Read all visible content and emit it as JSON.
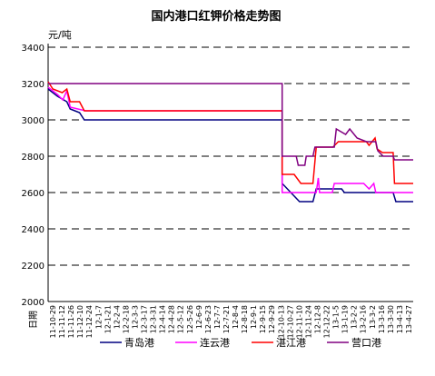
{
  "chart_data": {
    "type": "line",
    "title": "国内港口红钾价格走势图",
    "ylabel": "元/吨",
    "xlabel": "日期",
    "ylim": [
      2000,
      3400
    ],
    "yticks": [
      2000,
      2200,
      2400,
      2600,
      2800,
      3000,
      3200,
      3400
    ],
    "grid": "horizontal-dashed",
    "legend_position": "bottom",
    "x_ticks": [
      "11-10-29",
      "11-11-12",
      "11-11-26",
      "11-12-10",
      "11-12-24",
      "12-1-7",
      "12-1-21",
      "12-2-4",
      "12-2-18",
      "12-3-3",
      "12-3-17",
      "12-3-31",
      "12-4-14",
      "12-4-28",
      "12-5-12",
      "12-5-26",
      "12-6-9",
      "12-6-23",
      "12-7-7",
      "12-7-21",
      "12-8-4",
      "12-8-18",
      "12-9-1",
      "12-9-15",
      "12-9-29",
      "12-10-13",
      "12-10-27",
      "12-11-10",
      "12-11-24",
      "12-12-8",
      "12-12-22",
      "13-1-5",
      "13-1-19",
      "13-2-2",
      "13-2-16",
      "13-3-2",
      "13-3-16",
      "13-3-30",
      "13-4-13",
      "13-4-27"
    ],
    "x_start": "2011-10-29",
    "x_end": "2013-04-27",
    "series": [
      {
        "name": "青岛港",
        "color": "#000080",
        "points": [
          [
            "2011-10-29",
            3170
          ],
          [
            "2011-11-12",
            3130
          ],
          [
            "2011-11-26",
            3100
          ],
          [
            "2011-12-01",
            3060
          ],
          [
            "2011-12-15",
            3040
          ],
          [
            "2011-12-22",
            3000
          ],
          [
            "2012-10-13",
            3000
          ],
          [
            "2012-10-13",
            2650
          ],
          [
            "2012-11-08",
            2550
          ],
          [
            "2012-11-28",
            2550
          ],
          [
            "2012-12-03",
            2620
          ],
          [
            "2013-01-10",
            2620
          ],
          [
            "2013-01-14",
            2600
          ],
          [
            "2013-03-28",
            2600
          ],
          [
            "2013-04-01",
            2550
          ],
          [
            "2013-04-27",
            2550
          ]
        ]
      },
      {
        "name": "连云港",
        "color": "#ff00ff",
        "points": [
          [
            "2011-10-29",
            3180
          ],
          [
            "2011-11-12",
            3140
          ],
          [
            "2011-11-20",
            3110
          ],
          [
            "2011-11-26",
            3160
          ],
          [
            "2011-12-01",
            3070
          ],
          [
            "2011-12-24",
            3050
          ],
          [
            "2012-10-13",
            3050
          ],
          [
            "2012-10-13",
            2600
          ],
          [
            "2012-12-03",
            2600
          ],
          [
            "2012-12-06",
            2680
          ],
          [
            "2012-12-08",
            2600
          ],
          [
            "2012-12-27",
            2600
          ],
          [
            "2012-12-30",
            2650
          ],
          [
            "2013-02-12",
            2650
          ],
          [
            "2013-02-20",
            2620
          ],
          [
            "2013-02-27",
            2650
          ],
          [
            "2013-03-02",
            2600
          ],
          [
            "2013-04-27",
            2600
          ]
        ]
      },
      {
        "name": "湛江港",
        "color": "#ff0000",
        "points": [
          [
            "2011-10-29",
            3210
          ],
          [
            "2011-11-05",
            3170
          ],
          [
            "2011-11-19",
            3150
          ],
          [
            "2011-11-26",
            3170
          ],
          [
            "2011-12-01",
            3100
          ],
          [
            "2011-12-15",
            3100
          ],
          [
            "2011-12-22",
            3050
          ],
          [
            "2012-10-13",
            3050
          ],
          [
            "2012-10-13",
            2700
          ],
          [
            "2012-10-31",
            2700
          ],
          [
            "2012-11-10",
            2650
          ],
          [
            "2012-11-28",
            2650
          ],
          [
            "2012-12-03",
            2850
          ],
          [
            "2012-12-28",
            2850
          ],
          [
            "2013-01-05",
            2880
          ],
          [
            "2013-02-16",
            2880
          ],
          [
            "2013-02-20",
            2860
          ],
          [
            "2013-03-01",
            2900
          ],
          [
            "2013-03-04",
            2840
          ],
          [
            "2013-03-12",
            2820
          ],
          [
            "2013-03-28",
            2820
          ],
          [
            "2013-03-30",
            2650
          ],
          [
            "2013-04-27",
            2650
          ]
        ]
      },
      {
        "name": "营口港",
        "color": "#800080",
        "points": [
          [
            "2011-10-29",
            3200
          ],
          [
            "2012-10-13",
            3200
          ],
          [
            "2012-10-13",
            2800
          ],
          [
            "2012-11-03",
            2800
          ],
          [
            "2012-11-06",
            2750
          ],
          [
            "2012-11-16",
            2750
          ],
          [
            "2012-11-18",
            2800
          ],
          [
            "2012-11-28",
            2800
          ],
          [
            "2012-12-01",
            2850
          ],
          [
            "2012-12-30",
            2850
          ],
          [
            "2013-01-02",
            2950
          ],
          [
            "2013-01-16",
            2920
          ],
          [
            "2013-01-22",
            2950
          ],
          [
            "2013-02-02",
            2900
          ],
          [
            "2013-02-16",
            2880
          ],
          [
            "2013-03-02",
            2880
          ],
          [
            "2013-03-05",
            2830
          ],
          [
            "2013-03-13",
            2800
          ],
          [
            "2013-03-28",
            2800
          ],
          [
            "2013-03-30",
            2780
          ],
          [
            "2013-04-27",
            2780
          ]
        ]
      }
    ]
  }
}
